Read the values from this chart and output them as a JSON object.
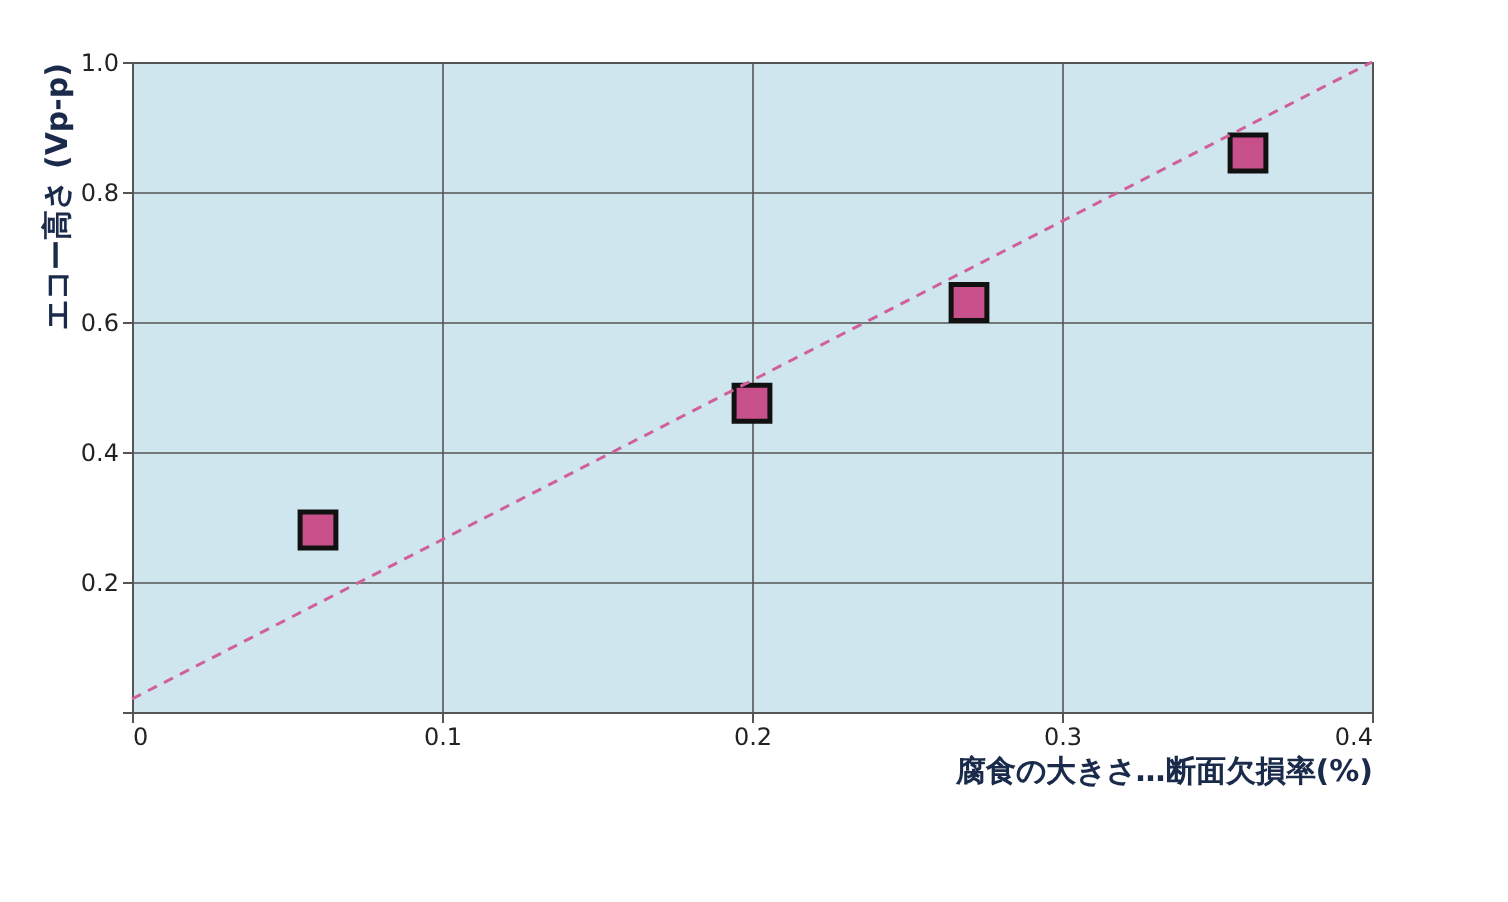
{
  "chart_data": {
    "type": "scatter",
    "xlabel": "腐食の大きさ…断面欠損率(%)",
    "ylabel": "エコー高さ (Vp-p)",
    "xlim": [
      0,
      0.4
    ],
    "xticks": [
      0,
      0.1,
      0.2,
      0.3,
      0.4
    ],
    "ylim": [
      0,
      1.0
    ],
    "yticks": [
      {
        "value": 0,
        "label": null
      },
      0.2,
      0.4,
      0.6,
      0.8,
      {
        "value": 1.0,
        "label": "1.0"
      }
    ],
    "grid": true,
    "legend": false,
    "series": [
      {
        "color": "#c8508a",
        "marker": "square",
        "x": [
          0.06,
          0.2,
          0.27,
          0.36
        ],
        "values": [
          0.28,
          0.475,
          0.63,
          0.86
        ]
      },
      {
        "type": "line",
        "color": "#d0609a",
        "marker": "none",
        "line_style": "dashed",
        "x": [
          0,
          0.4
        ],
        "values": [
          0.02,
          1.0
        ]
      }
    ]
  }
}
